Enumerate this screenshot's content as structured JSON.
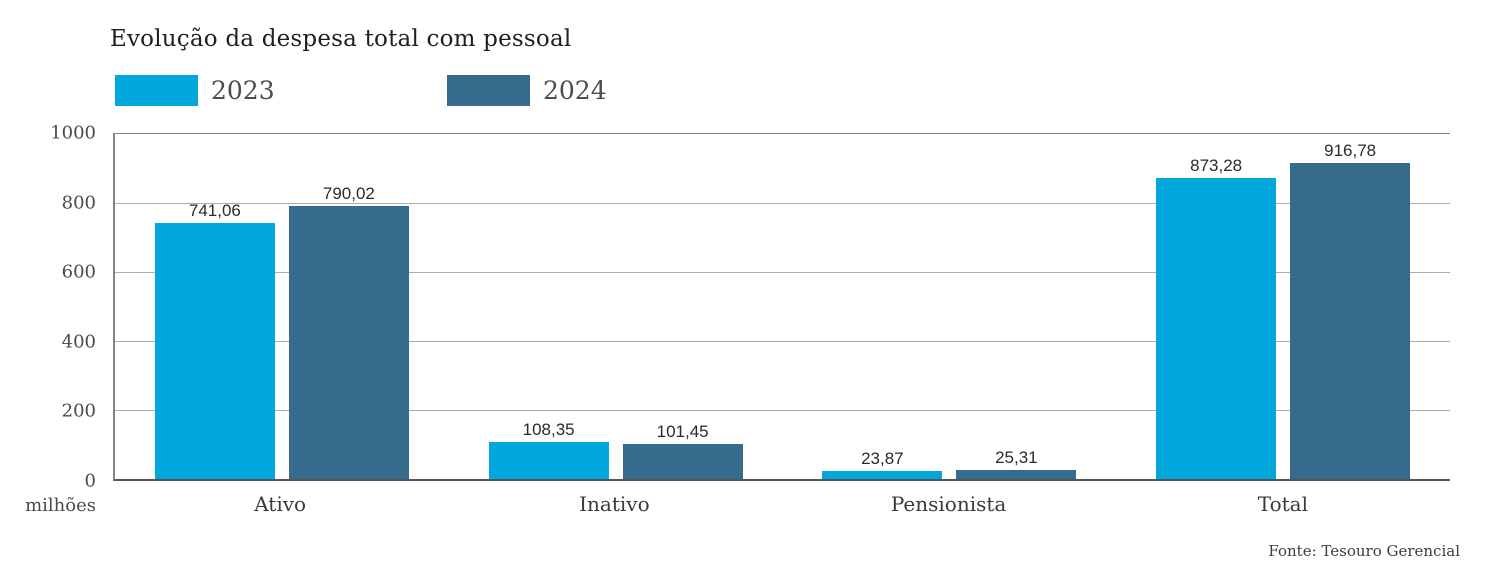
{
  "title": "Evolução da despesa total com pessoal",
  "legend": {
    "items": [
      {
        "label": "2023",
        "color": "#00a8de"
      },
      {
        "label": "2024",
        "color": "#376b8e"
      }
    ]
  },
  "axis": {
    "unit_label": "milhões",
    "ytick_labels": [
      "1000",
      "800",
      "600",
      "400",
      "200",
      "0"
    ]
  },
  "source": "Fonte: Tesouro Gerencial",
  "colors": {
    "series_2023": "#00a8de",
    "series_2024": "#376b8e",
    "gridline": "#adadad",
    "axis_line": "#848484",
    "baseline": "#565656"
  },
  "chart_data": {
    "type": "bar",
    "title": "Evolução da despesa total com pessoal",
    "categories": [
      "Ativo",
      "Inativo",
      "Pensionista",
      "Total"
    ],
    "series": [
      {
        "name": "2023",
        "color": "#00a8de",
        "values": [
          741.06,
          108.35,
          23.87,
          873.28
        ],
        "value_labels": [
          "741,06",
          "108,35",
          "23,87",
          "873,28"
        ]
      },
      {
        "name": "2024",
        "color": "#376b8e",
        "values": [
          790.02,
          101.45,
          25.31,
          916.78
        ],
        "value_labels": [
          "790,02",
          "101,45",
          "25,31",
          "916,78"
        ]
      }
    ],
    "xlabel": "",
    "ylabel": "milhões",
    "ylim": [
      0,
      1000
    ],
    "yticks": [
      0,
      200,
      400,
      600,
      800,
      1000
    ],
    "grid": true,
    "legend_position": "top",
    "source": "Fonte: Tesouro Gerencial"
  }
}
